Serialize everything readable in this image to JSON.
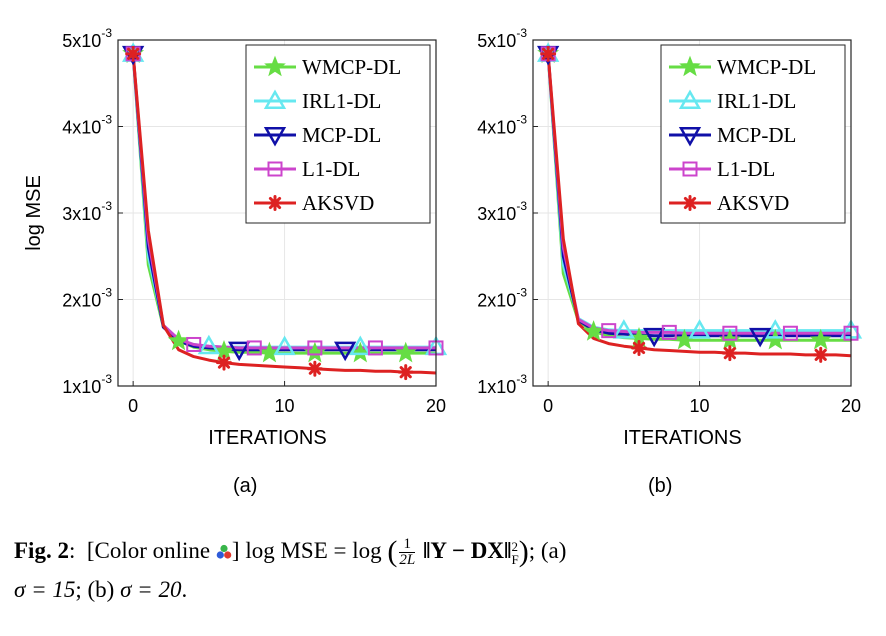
{
  "chart_data": [
    {
      "type": "line",
      "sublabel": "(a)",
      "xlabel": "ITERATIONS",
      "ylabel": "log MSE",
      "xlim": [
        -1,
        20
      ],
      "ylim": [
        0.001,
        0.005
      ],
      "xticks": [
        0,
        10,
        20
      ],
      "xtick_labels": [
        "0",
        "10",
        "20"
      ],
      "yticks": [
        0.001,
        0.002,
        0.003,
        0.004,
        0.005
      ],
      "ytick_labels": [
        {
          "mant": "1x10",
          "exp": "-3"
        },
        {
          "mant": "2x10",
          "exp": "-3"
        },
        {
          "mant": "3x10",
          "exp": "-3"
        },
        {
          "mant": "4x10",
          "exp": "-3"
        },
        {
          "mant": "5x10",
          "exp": "-3"
        }
      ],
      "grid": true,
      "legend_position": "top-right",
      "x": [
        0,
        1,
        2,
        3,
        4,
        5,
        6,
        7,
        8,
        9,
        10,
        11,
        12,
        13,
        14,
        15,
        16,
        17,
        18,
        19,
        20
      ],
      "series": [
        {
          "name": "WMCP-DL",
          "color": "#66dd44",
          "marker": "star",
          "marker_x": [
            0,
            3,
            6,
            9,
            12,
            15,
            18
          ],
          "values": [
            0.00484,
            0.0024,
            0.00168,
            0.00152,
            0.00145,
            0.00142,
            0.0014,
            0.00139,
            0.00139,
            0.00138,
            0.00138,
            0.00138,
            0.00138,
            0.00138,
            0.00138,
            0.00138,
            0.00138,
            0.00138,
            0.00138,
            0.00138,
            0.00138
          ]
        },
        {
          "name": "IRL1-DL",
          "color": "#66e8f0",
          "marker": "triangle-up",
          "marker_x": [
            0,
            5,
            10,
            15,
            20
          ],
          "values": [
            0.00484,
            0.0025,
            0.0017,
            0.00154,
            0.00148,
            0.00146,
            0.00145,
            0.00145,
            0.00145,
            0.00145,
            0.00145,
            0.00145,
            0.00145,
            0.00145,
            0.00145,
            0.00145,
            0.00145,
            0.00145,
            0.00145,
            0.00145,
            0.00145
          ]
        },
        {
          "name": "MCP-DL",
          "color": "#1010a8",
          "marker": "triangle-down",
          "marker_x": [
            0,
            7,
            14
          ],
          "values": [
            0.00484,
            0.0026,
            0.00168,
            0.00152,
            0.00146,
            0.00144,
            0.00143,
            0.00142,
            0.00142,
            0.00142,
            0.00142,
            0.00142,
            0.00142,
            0.00142,
            0.00142,
            0.00142,
            0.00142,
            0.00142,
            0.00142,
            0.00142,
            0.00142
          ]
        },
        {
          "name": "L1-DL",
          "color": "#cc44cc",
          "marker": "square",
          "marker_x": [
            0,
            4,
            8,
            12,
            16,
            20
          ],
          "values": [
            0.00484,
            0.0027,
            0.0017,
            0.00154,
            0.00148,
            0.00146,
            0.00145,
            0.00144,
            0.00144,
            0.00144,
            0.00144,
            0.00144,
            0.00144,
            0.00144,
            0.00144,
            0.00144,
            0.00144,
            0.00144,
            0.00144,
            0.00144,
            0.00144
          ]
        },
        {
          "name": "AKSVD",
          "color": "#dd2222",
          "marker": "asterisk",
          "marker_x": [
            0,
            6,
            12,
            18
          ],
          "values": [
            0.00484,
            0.0028,
            0.0017,
            0.00142,
            0.00134,
            0.0013,
            0.00127,
            0.00125,
            0.00124,
            0.00123,
            0.00122,
            0.00121,
            0.0012,
            0.00119,
            0.00118,
            0.00118,
            0.00117,
            0.00117,
            0.00116,
            0.00116,
            0.00115
          ]
        }
      ]
    },
    {
      "type": "line",
      "sublabel": "(b)",
      "xlabel": "ITERATIONS",
      "ylabel": "",
      "xlim": [
        -1,
        20
      ],
      "ylim": [
        0.001,
        0.005
      ],
      "xticks": [
        0,
        10,
        20
      ],
      "xtick_labels": [
        "0",
        "10",
        "20"
      ],
      "yticks": [
        0.001,
        0.002,
        0.003,
        0.004,
        0.005
      ],
      "ytick_labels": [
        {
          "mant": "1x10",
          "exp": "-3"
        },
        {
          "mant": "2x10",
          "exp": "-3"
        },
        {
          "mant": "3x10",
          "exp": "-3"
        },
        {
          "mant": "4x10",
          "exp": "-3"
        },
        {
          "mant": "5x10",
          "exp": "-3"
        }
      ],
      "grid": true,
      "legend_position": "top-right",
      "x": [
        0,
        1,
        2,
        3,
        4,
        5,
        6,
        7,
        8,
        9,
        10,
        11,
        12,
        13,
        14,
        15,
        16,
        17,
        18,
        19,
        20
      ],
      "series": [
        {
          "name": "WMCP-DL",
          "color": "#66dd44",
          "marker": "star",
          "marker_x": [
            0,
            3,
            6,
            9,
            12,
            15,
            18
          ],
          "values": [
            0.00484,
            0.0023,
            0.00175,
            0.00163,
            0.00158,
            0.00156,
            0.00155,
            0.00154,
            0.00154,
            0.00153,
            0.00153,
            0.00153,
            0.00153,
            0.00153,
            0.00153,
            0.00153,
            0.00153,
            0.00153,
            0.00153,
            0.00153,
            0.00153
          ]
        },
        {
          "name": "IRL1-DL",
          "color": "#66e8f0",
          "marker": "triangle-up",
          "marker_x": [
            0,
            5,
            10,
            15,
            20
          ],
          "values": [
            0.00484,
            0.0024,
            0.00178,
            0.00168,
            0.00165,
            0.00164,
            0.00164,
            0.00164,
            0.00164,
            0.00164,
            0.00164,
            0.00164,
            0.00164,
            0.00164,
            0.00164,
            0.00164,
            0.00164,
            0.00164,
            0.00164,
            0.00164,
            0.00164
          ]
        },
        {
          "name": "MCP-DL",
          "color": "#1010a8",
          "marker": "triangle-down",
          "marker_x": [
            0,
            7,
            14
          ],
          "values": [
            0.00484,
            0.0025,
            0.00176,
            0.00165,
            0.00161,
            0.0016,
            0.00159,
            0.00158,
            0.00158,
            0.00158,
            0.00158,
            0.00158,
            0.00158,
            0.00158,
            0.00158,
            0.00158,
            0.00158,
            0.00158,
            0.00158,
            0.00158,
            0.00158
          ]
        },
        {
          "name": "L1-DL",
          "color": "#cc44cc",
          "marker": "square",
          "marker_x": [
            0,
            4,
            8,
            12,
            16,
            20
          ],
          "values": [
            0.00484,
            0.0026,
            0.00177,
            0.00167,
            0.00164,
            0.00163,
            0.00162,
            0.00162,
            0.00162,
            0.00161,
            0.00161,
            0.00161,
            0.00161,
            0.00161,
            0.00161,
            0.00161,
            0.00161,
            0.00161,
            0.00161,
            0.00161,
            0.00161
          ]
        },
        {
          "name": "AKSVD",
          "color": "#dd2222",
          "marker": "asterisk",
          "marker_x": [
            0,
            6,
            12,
            18
          ],
          "values": [
            0.00484,
            0.0027,
            0.00172,
            0.00155,
            0.00149,
            0.00146,
            0.00144,
            0.00142,
            0.00141,
            0.0014,
            0.00139,
            0.00139,
            0.00138,
            0.00138,
            0.00137,
            0.00137,
            0.00137,
            0.00136,
            0.00136,
            0.00136,
            0.00135
          ]
        }
      ]
    }
  ],
  "caption": {
    "fig_label": "Fig. 2",
    "colon": ":",
    "color_online": "[Color online",
    "bracket_close": "]",
    "lhs": "log MSE = log",
    "frac_num": "1",
    "frac_den": "2L",
    "norm": "‖Y − DX‖",
    "norm_sub": "F",
    "norm_sup": "2",
    "part_a": "; (a)",
    "sigma_a": "σ = 15",
    "part_b": "; (b)",
    "sigma_b": "σ = 20",
    "end": "."
  },
  "colors": {
    "grid": "#e6e6e6",
    "axis": "#262626"
  }
}
